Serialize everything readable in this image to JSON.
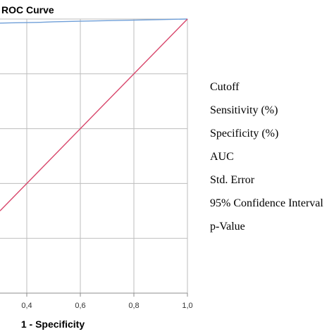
{
  "chart_data": {
    "type": "line",
    "title": "ROC Curve",
    "xlabel": "1 - Specificity",
    "ylabel": "",
    "xlim": [
      0.3,
      1.0
    ],
    "ylim": [
      0.0,
      1.0
    ],
    "grid": true,
    "x_ticks": [
      0.4,
      0.6,
      0.8,
      1.0
    ],
    "x_tick_labels": [
      "0,4",
      "0,6",
      "0,8",
      "1,0"
    ],
    "y_ticks": [
      0.2,
      0.4,
      0.6,
      0.8,
      1.0
    ],
    "series": [
      {
        "color": "#6f9fd8",
        "x": [
          0.3,
          0.34,
          0.4,
          0.45,
          0.5,
          0.6,
          0.7,
          0.8,
          0.9,
          1.0
        ],
        "y": [
          0.985,
          0.986,
          0.987,
          0.988,
          0.99,
          0.992,
          0.994,
          0.996,
          0.998,
          1.0
        ]
      },
      {
        "color": "#d8466b",
        "x": [
          0.3,
          1.0
        ],
        "y": [
          0.3,
          1.0
        ]
      }
    ]
  },
  "stats_table": {
    "rows": [
      "Cutoff",
      "Sensitivity (%)",
      "Specificity (%)",
      "AUC",
      "Std. Error",
      "95% Confidence Interval",
      "p-Value"
    ]
  }
}
